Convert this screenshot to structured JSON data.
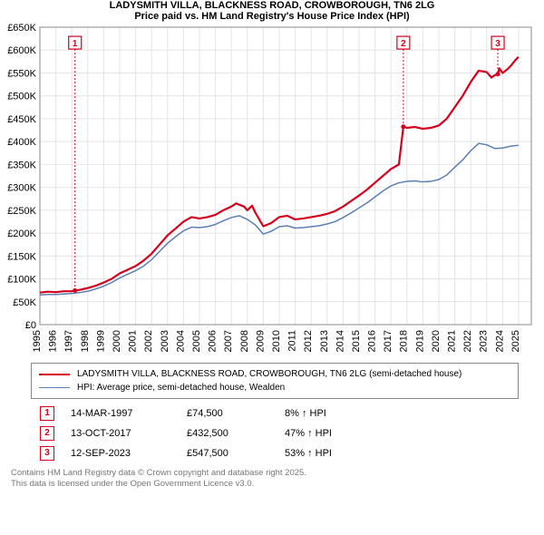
{
  "title_line1": "LADYSMITH VILLA, BLACKNESS ROAD, CROWBOROUGH, TN6 2LG",
  "title_line2": "Price paid vs. HM Land Registry's House Price Index (HPI)",
  "title_fontsize": 12,
  "chart": {
    "type": "line",
    "background_color": "#ffffff",
    "grid_color": "#e4e4e4",
    "border_color": "#888888",
    "x": {
      "min": 1995,
      "max": 2025.8,
      "ticks": [
        1995,
        1996,
        1997,
        1998,
        1999,
        2000,
        2001,
        2002,
        2003,
        2004,
        2005,
        2006,
        2007,
        2008,
        2009,
        2010,
        2011,
        2012,
        2013,
        2014,
        2015,
        2016,
        2017,
        2018,
        2019,
        2020,
        2021,
        2022,
        2023,
        2024,
        2025
      ]
    },
    "y": {
      "min": 0,
      "max": 650000,
      "ticks": [
        0,
        50000,
        100000,
        150000,
        200000,
        250000,
        300000,
        350000,
        400000,
        450000,
        500000,
        550000,
        600000,
        650000
      ],
      "tick_labels": [
        "£0",
        "£50K",
        "£100K",
        "£150K",
        "£200K",
        "£250K",
        "£300K",
        "£350K",
        "£400K",
        "£450K",
        "£500K",
        "£550K",
        "£600K",
        "£650K"
      ]
    },
    "series": [
      {
        "id": "property",
        "label": "LADYSMITH VILLA, BLACKNESS ROAD, CROWBOROUGH, TN6 2LG (semi-detached house)",
        "color": "#d6001c",
        "width": 2.2,
        "points": [
          [
            1995.0,
            70000
          ],
          [
            1995.5,
            72000
          ],
          [
            1996.0,
            71000
          ],
          [
            1996.5,
            73000
          ],
          [
            1997.0,
            73000
          ],
          [
            1997.2,
            74500
          ],
          [
            1997.5,
            76000
          ],
          [
            1998.0,
            80000
          ],
          [
            1998.5,
            85000
          ],
          [
            1999.0,
            92000
          ],
          [
            1999.5,
            100000
          ],
          [
            2000.0,
            112000
          ],
          [
            2000.5,
            120000
          ],
          [
            2001.0,
            128000
          ],
          [
            2001.5,
            140000
          ],
          [
            2002.0,
            155000
          ],
          [
            2002.5,
            175000
          ],
          [
            2003.0,
            195000
          ],
          [
            2003.5,
            210000
          ],
          [
            2004.0,
            225000
          ],
          [
            2004.5,
            235000
          ],
          [
            2005.0,
            232000
          ],
          [
            2005.5,
            235000
          ],
          [
            2006.0,
            240000
          ],
          [
            2006.5,
            250000
          ],
          [
            2007.0,
            258000
          ],
          [
            2007.3,
            265000
          ],
          [
            2007.5,
            262000
          ],
          [
            2007.8,
            258000
          ],
          [
            2008.0,
            250000
          ],
          [
            2008.3,
            260000
          ],
          [
            2008.5,
            245000
          ],
          [
            2009.0,
            215000
          ],
          [
            2009.5,
            222000
          ],
          [
            2010.0,
            235000
          ],
          [
            2010.5,
            238000
          ],
          [
            2011.0,
            230000
          ],
          [
            2011.5,
            232000
          ],
          [
            2012.0,
            235000
          ],
          [
            2012.5,
            238000
          ],
          [
            2013.0,
            242000
          ],
          [
            2013.5,
            248000
          ],
          [
            2014.0,
            258000
          ],
          [
            2014.5,
            270000
          ],
          [
            2015.0,
            282000
          ],
          [
            2015.5,
            295000
          ],
          [
            2016.0,
            310000
          ],
          [
            2016.5,
            325000
          ],
          [
            2017.0,
            340000
          ],
          [
            2017.5,
            350000
          ],
          [
            2017.78,
            432500
          ],
          [
            2017.79,
            432500
          ],
          [
            2018.0,
            430000
          ],
          [
            2018.5,
            432000
          ],
          [
            2019.0,
            428000
          ],
          [
            2019.5,
            430000
          ],
          [
            2020.0,
            435000
          ],
          [
            2020.5,
            450000
          ],
          [
            2021.0,
            475000
          ],
          [
            2021.5,
            500000
          ],
          [
            2022.0,
            530000
          ],
          [
            2022.5,
            555000
          ],
          [
            2023.0,
            552000
          ],
          [
            2023.3,
            540000
          ],
          [
            2023.5,
            545000
          ],
          [
            2023.7,
            547500
          ],
          [
            2023.8,
            560000
          ],
          [
            2024.0,
            550000
          ],
          [
            2024.3,
            558000
          ],
          [
            2024.5,
            565000
          ],
          [
            2024.8,
            578000
          ],
          [
            2025.0,
            585000
          ]
        ]
      },
      {
        "id": "hpi",
        "label": "HPI: Average price, semi-detached house, Wealden",
        "color": "#5b7fb3",
        "width": 1.5,
        "points": [
          [
            1995.0,
            65000
          ],
          [
            1995.5,
            66000
          ],
          [
            1996.0,
            66000
          ],
          [
            1996.5,
            67000
          ],
          [
            1997.0,
            68000
          ],
          [
            1997.5,
            70000
          ],
          [
            1998.0,
            73000
          ],
          [
            1998.5,
            78000
          ],
          [
            1999.0,
            84000
          ],
          [
            1999.5,
            92000
          ],
          [
            2000.0,
            102000
          ],
          [
            2000.5,
            110000
          ],
          [
            2001.0,
            118000
          ],
          [
            2001.5,
            128000
          ],
          [
            2002.0,
            142000
          ],
          [
            2002.5,
            160000
          ],
          [
            2003.0,
            178000
          ],
          [
            2003.5,
            192000
          ],
          [
            2004.0,
            205000
          ],
          [
            2004.5,
            213000
          ],
          [
            2005.0,
            212000
          ],
          [
            2005.5,
            214000
          ],
          [
            2006.0,
            219000
          ],
          [
            2006.5,
            227000
          ],
          [
            2007.0,
            234000
          ],
          [
            2007.5,
            238000
          ],
          [
            2008.0,
            230000
          ],
          [
            2008.5,
            218000
          ],
          [
            2009.0,
            198000
          ],
          [
            2009.5,
            204000
          ],
          [
            2010.0,
            214000
          ],
          [
            2010.5,
            216000
          ],
          [
            2011.0,
            211000
          ],
          [
            2011.5,
            212000
          ],
          [
            2012.0,
            214000
          ],
          [
            2012.5,
            216000
          ],
          [
            2013.0,
            220000
          ],
          [
            2013.5,
            225000
          ],
          [
            2014.0,
            234000
          ],
          [
            2014.5,
            244000
          ],
          [
            2015.0,
            255000
          ],
          [
            2015.5,
            266000
          ],
          [
            2016.0,
            279000
          ],
          [
            2016.5,
            292000
          ],
          [
            2017.0,
            303000
          ],
          [
            2017.5,
            310000
          ],
          [
            2018.0,
            313000
          ],
          [
            2018.5,
            314000
          ],
          [
            2019.0,
            312000
          ],
          [
            2019.5,
            313000
          ],
          [
            2020.0,
            317000
          ],
          [
            2020.5,
            327000
          ],
          [
            2021.0,
            344000
          ],
          [
            2021.5,
            360000
          ],
          [
            2022.0,
            380000
          ],
          [
            2022.5,
            396000
          ],
          [
            2023.0,
            393000
          ],
          [
            2023.5,
            385000
          ],
          [
            2024.0,
            386000
          ],
          [
            2024.5,
            390000
          ],
          [
            2025.0,
            392000
          ]
        ]
      }
    ],
    "markers": [
      {
        "n": "1",
        "x": 1997.2,
        "y_top": 630000
      },
      {
        "n": "2",
        "x": 2017.78,
        "y_top": 630000
      },
      {
        "n": "3",
        "x": 2023.7,
        "y_top": 630000
      }
    ]
  },
  "legend": {
    "items": [
      {
        "color": "#d6001c",
        "width": 2.2,
        "text": "LADYSMITH VILLA, BLACKNESS ROAD, CROWBOROUGH, TN6 2LG (semi-detached house)"
      },
      {
        "color": "#5b7fb3",
        "width": 1.5,
        "text": "HPI: Average price, semi-detached house, Wealden"
      }
    ]
  },
  "transactions": [
    {
      "n": "1",
      "date": "14-MAR-1997",
      "price": "£74,500",
      "pct": "8%",
      "arrow": "↑",
      "suffix": "HPI"
    },
    {
      "n": "2",
      "date": "13-OCT-2017",
      "price": "£432,500",
      "pct": "47%",
      "arrow": "↑",
      "suffix": "HPI"
    },
    {
      "n": "3",
      "date": "12-SEP-2023",
      "price": "£547,500",
      "pct": "53%",
      "arrow": "↑",
      "suffix": "HPI"
    }
  ],
  "attribution_line1": "Contains HM Land Registry data © Crown copyright and database right 2025.",
  "attribution_line2": "This data is licensed under the Open Government Licence v3.0."
}
